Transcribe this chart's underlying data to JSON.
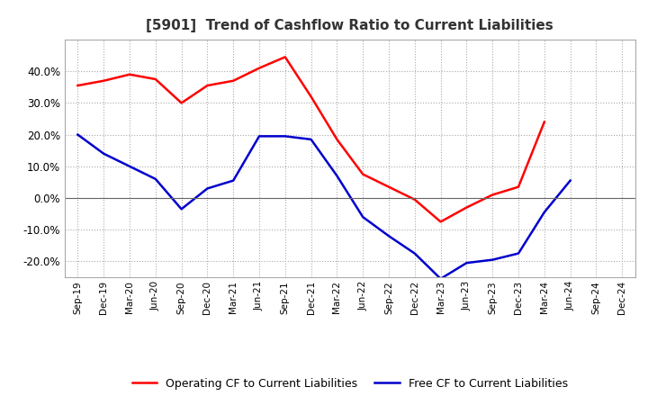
{
  "title": "[5901]  Trend of Cashflow Ratio to Current Liabilities",
  "x_labels": [
    "Sep-19",
    "Dec-19",
    "Mar-20",
    "Jun-20",
    "Sep-20",
    "Dec-20",
    "Mar-21",
    "Jun-21",
    "Sep-21",
    "Dec-21",
    "Mar-22",
    "Jun-22",
    "Sep-22",
    "Dec-22",
    "Mar-23",
    "Jun-23",
    "Sep-23",
    "Dec-23",
    "Mar-24",
    "Jun-24",
    "Sep-24",
    "Dec-24"
  ],
  "operating_cf": [
    0.355,
    0.37,
    0.39,
    0.375,
    0.3,
    0.355,
    0.37,
    0.41,
    0.445,
    0.32,
    0.185,
    0.075,
    0.035,
    -0.005,
    -0.075,
    -0.03,
    0.01,
    0.035,
    0.24,
    null,
    null,
    null
  ],
  "free_cf": [
    0.2,
    0.14,
    0.1,
    0.06,
    -0.035,
    0.03,
    0.055,
    0.195,
    0.195,
    0.185,
    0.07,
    -0.06,
    -0.12,
    -0.175,
    -0.255,
    -0.205,
    -0.195,
    -0.175,
    -0.045,
    0.055,
    null,
    null
  ],
  "ylim": [
    -0.25,
    0.5
  ],
  "yticks": [
    -0.2,
    -0.1,
    0.0,
    0.1,
    0.2,
    0.3,
    0.4
  ],
  "operating_color": "#ff0000",
  "free_color": "#0000cc",
  "background_color": "#ffffff",
  "grid_color": "#aaaaaa",
  "title_color": "#333333",
  "legend_items": [
    "Operating CF to Current Liabilities",
    "Free CF to Current Liabilities"
  ]
}
